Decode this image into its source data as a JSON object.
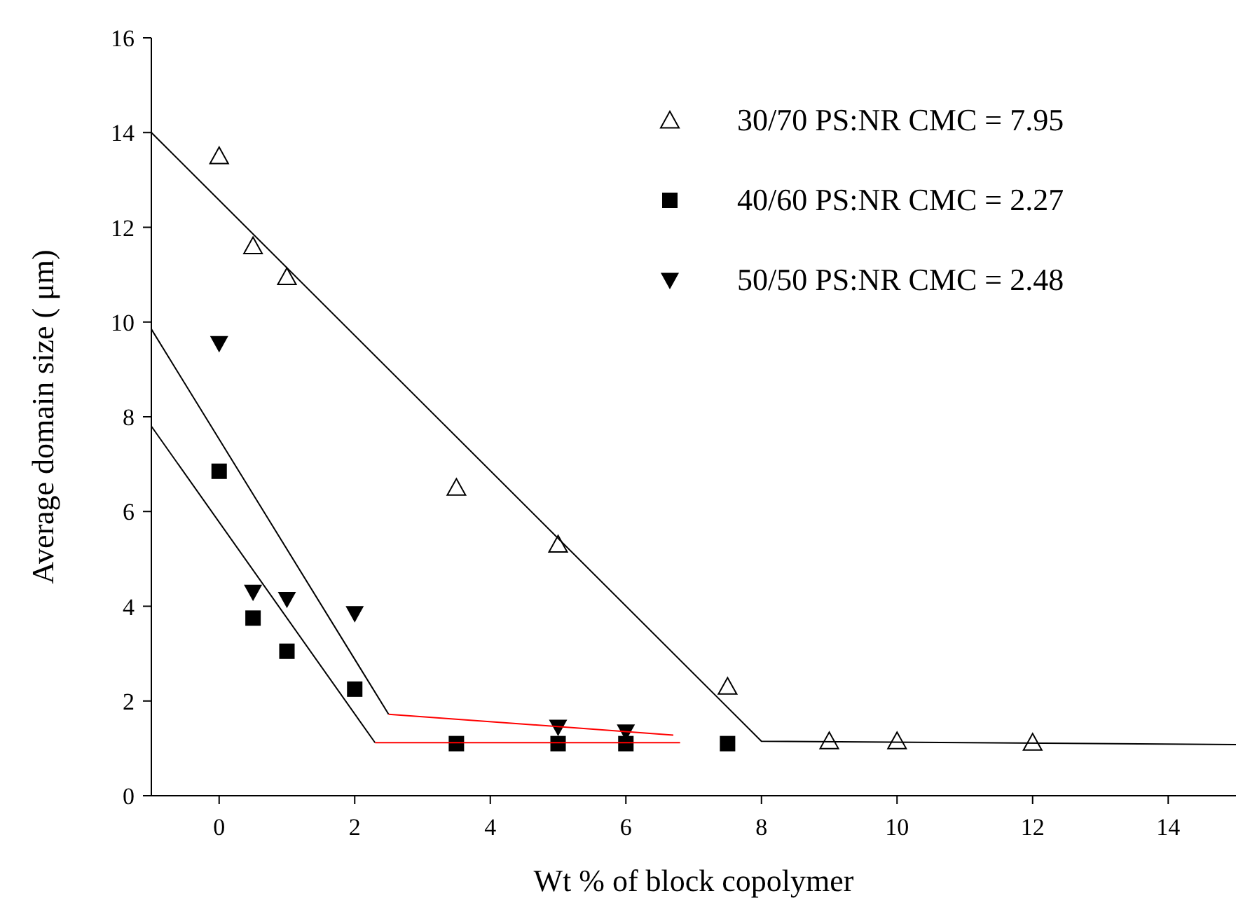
{
  "chart_data": {
    "type": "scatter",
    "xlabel": "Wt % of  block copolymer",
    "ylabel": "Average domain size (   μm)",
    "xlim": [
      -1,
      15
    ],
    "xticks": [
      0,
      2,
      4,
      6,
      8,
      10,
      12,
      14
    ],
    "ylim": [
      0,
      16
    ],
    "yticks": [
      0,
      2,
      4,
      6,
      8,
      10,
      12,
      14,
      16
    ],
    "grid": false,
    "legend": "top right",
    "series": [
      {
        "name": "30/70 PS:NR CMC = 7.95",
        "color": "#000000",
        "marker": "triangle-open",
        "x": [
          0,
          0.5,
          1,
          3.5,
          5,
          7.5,
          9,
          10,
          12
        ],
        "values": [
          13.5,
          11.6,
          10.95,
          6.5,
          5.3,
          2.3,
          1.15,
          1.15,
          1.12
        ]
      },
      {
        "name": "40/60 PS:NR CMC = 2.27",
        "color": "#000000",
        "marker": "square",
        "x": [
          0,
          0.5,
          1,
          2,
          3.5,
          5,
          6,
          7.5
        ],
        "values": [
          6.85,
          3.75,
          3.05,
          2.25,
          1.1,
          1.1,
          1.1,
          1.1
        ]
      },
      {
        "name": "50/50 PS:NR CMC = 2.48",
        "color": "#000000",
        "marker": "triangle-down",
        "x": [
          0,
          0.5,
          1,
          2,
          5,
          6
        ],
        "values": [
          9.55,
          4.3,
          4.15,
          3.85,
          1.45,
          1.35
        ]
      },
      {
        "type": "line",
        "color": "#000000",
        "marker": "none",
        "x": [
          -1,
          8,
          15
        ],
        "values": [
          14,
          1.15,
          1.08
        ]
      },
      {
        "type": "line",
        "color": "#000000",
        "marker": "none",
        "x": [
          -1,
          2.5
        ],
        "values": [
          9.85,
          1.72
        ]
      },
      {
        "type": "line",
        "color": "#ff0000",
        "marker": "none",
        "x": [
          2.5,
          6.7
        ],
        "values": [
          1.72,
          1.28
        ]
      },
      {
        "type": "line",
        "color": "#000000",
        "marker": "none",
        "x": [
          -1,
          2.3
        ],
        "values": [
          7.8,
          1.12
        ]
      },
      {
        "type": "line",
        "color": "#ff0000",
        "marker": "none",
        "x": [
          2.3,
          6.8
        ],
        "values": [
          1.12,
          1.12
        ]
      }
    ]
  }
}
